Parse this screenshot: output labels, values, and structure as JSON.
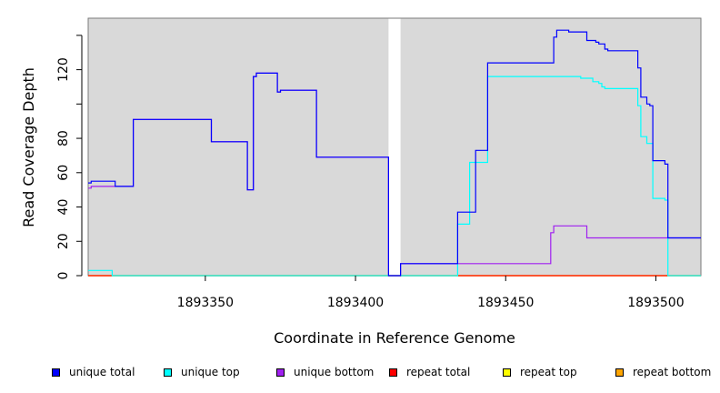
{
  "chart_data": {
    "type": "line",
    "xlabel": "Coordinate in Reference Genome",
    "ylabel": "Read Coverage Depth",
    "xlim": [
      1893311,
      1893515
    ],
    "ylim": [
      0,
      150
    ],
    "x_ticks": [
      1893350,
      1893400,
      1893450,
      1893500
    ],
    "x_tick_labels": [
      "1893350",
      "1893400",
      "1893450",
      "1893500"
    ],
    "y_ticks": [
      0,
      20,
      40,
      60,
      80,
      100,
      120,
      140
    ],
    "y_tick_labels": [
      "0",
      "20",
      "40",
      "60",
      "80",
      "",
      "120",
      ""
    ],
    "gap": [
      1893411,
      1893415
    ],
    "grid": false,
    "background": "#d9d9d9",
    "legend_position": "bottom",
    "series": [
      {
        "name": "unique total",
        "color": "#0000ff",
        "step": [
          [
            1893311,
            54
          ],
          [
            1893312,
            55
          ],
          [
            1893320,
            52
          ],
          [
            1893326,
            91
          ],
          [
            1893352,
            78
          ],
          [
            1893364,
            50
          ],
          [
            1893366,
            116
          ],
          [
            1893367,
            118
          ],
          [
            1893374,
            107
          ],
          [
            1893375,
            108
          ],
          [
            1893387,
            69
          ],
          [
            1893411,
            0
          ],
          [
            1893415,
            7
          ],
          [
            1893434,
            37
          ],
          [
            1893440,
            73
          ],
          [
            1893444,
            124
          ],
          [
            1893466,
            139
          ],
          [
            1893467,
            143
          ],
          [
            1893471,
            142
          ],
          [
            1893477,
            137
          ],
          [
            1893480,
            136
          ],
          [
            1893481,
            135
          ],
          [
            1893483,
            132
          ],
          [
            1893484,
            131
          ],
          [
            1893494,
            121
          ],
          [
            1893495,
            104
          ],
          [
            1893497,
            100
          ],
          [
            1893498,
            99
          ],
          [
            1893499,
            67
          ],
          [
            1893503,
            65
          ],
          [
            1893504,
            22
          ],
          [
            1893515,
            22
          ]
        ]
      },
      {
        "name": "unique top",
        "color": "#00ffff",
        "step": [
          [
            1893311,
            3
          ],
          [
            1893319,
            0
          ],
          [
            1893434,
            30
          ],
          [
            1893438,
            66
          ],
          [
            1893444,
            116
          ],
          [
            1893475,
            115
          ],
          [
            1893477,
            115
          ],
          [
            1893479,
            113
          ],
          [
            1893481,
            112
          ],
          [
            1893482,
            110
          ],
          [
            1893483,
            109
          ],
          [
            1893494,
            99
          ],
          [
            1893495,
            81
          ],
          [
            1893497,
            77
          ],
          [
            1893499,
            45
          ],
          [
            1893503,
            44
          ],
          [
            1893504,
            0
          ],
          [
            1893515,
            0
          ]
        ]
      },
      {
        "name": "unique bottom",
        "color": "#a020f0",
        "step": [
          [
            1893311,
            51
          ],
          [
            1893312,
            52
          ],
          [
            1893320,
            52
          ],
          [
            1893326,
            91
          ],
          [
            1893352,
            78
          ],
          [
            1893364,
            50
          ],
          [
            1893366,
            116
          ],
          [
            1893367,
            118
          ],
          [
            1893374,
            107
          ],
          [
            1893375,
            108
          ],
          [
            1893387,
            69
          ],
          [
            1893411,
            0
          ],
          [
            1893415,
            7
          ],
          [
            1893465,
            25
          ],
          [
            1893466,
            29
          ],
          [
            1893477,
            22
          ],
          [
            1893515,
            22
          ]
        ]
      },
      {
        "name": "repeat total",
        "color": "#ff0000",
        "step": [
          [
            1893311,
            0
          ],
          [
            1893515,
            0
          ]
        ]
      },
      {
        "name": "repeat top",
        "color": "#ffff00",
        "step": [
          [
            1893311,
            0
          ],
          [
            1893515,
            0
          ]
        ]
      },
      {
        "name": "repeat bottom",
        "color": "#ffa500",
        "step": [
          [
            1893311,
            0
          ],
          [
            1893515,
            0
          ]
        ]
      }
    ]
  }
}
